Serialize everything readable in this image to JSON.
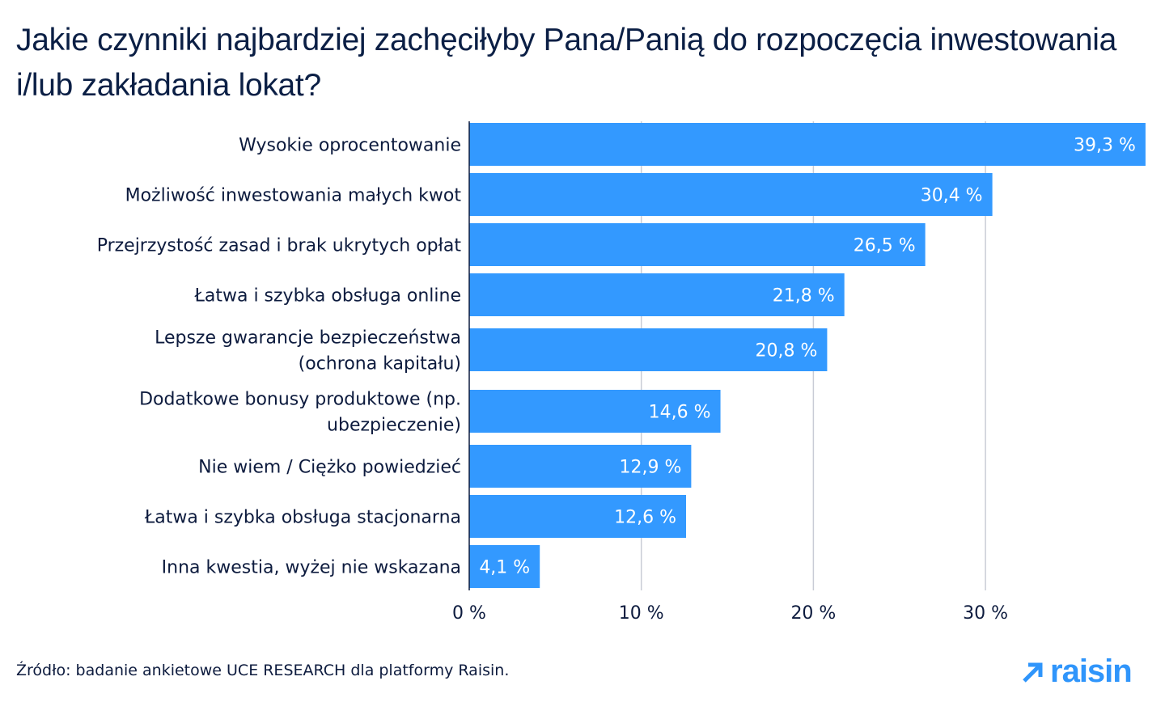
{
  "chart_data": {
    "type": "bar",
    "orientation": "horizontal",
    "title": "Jakie czynniki najbardziej zachęciłyby Pana/Panią do rozpoczęcia inwestowania i/lub zakładania lokat?",
    "categories": [
      [
        "Wysokie oprocentowanie"
      ],
      [
        "Możliwość inwestowania małych kwot"
      ],
      [
        "Przejrzystość zasad i brak ukrytych opłat"
      ],
      [
        "Łatwa i szybka obsługa online"
      ],
      [
        "Lepsze gwarancje bezpieczeństwa",
        "(ochrona kapitału)"
      ],
      [
        "Dodatkowe bonusy produktowe (np.",
        "ubezpieczenie)"
      ],
      [
        "Nie wiem / Ciężko powiedzieć"
      ],
      [
        "Łatwa i szybka obsługa stacjonarna"
      ],
      [
        "Inna kwestia, wyżej nie wskazana"
      ]
    ],
    "values": [
      39.3,
      30.4,
      26.5,
      21.8,
      20.8,
      14.6,
      12.9,
      12.6,
      4.1
    ],
    "value_labels": [
      "39,3 %",
      "30,4 %",
      "26,5 %",
      "21,8 %",
      "20,8 %",
      "14,6 %",
      "12,9 %",
      "12,6 %",
      "4,1 %"
    ],
    "xlim": [
      0,
      39.3
    ],
    "xticks": [
      0,
      10,
      20,
      30
    ],
    "xtick_labels": [
      "0 %",
      "10 %",
      "20 %",
      "30 %"
    ],
    "grid": true,
    "bar_color": "#3399ff"
  },
  "source": "Źródło: badanie ankietowe UCE RESEARCH dla platformy Raisin.",
  "logo": "raisin"
}
